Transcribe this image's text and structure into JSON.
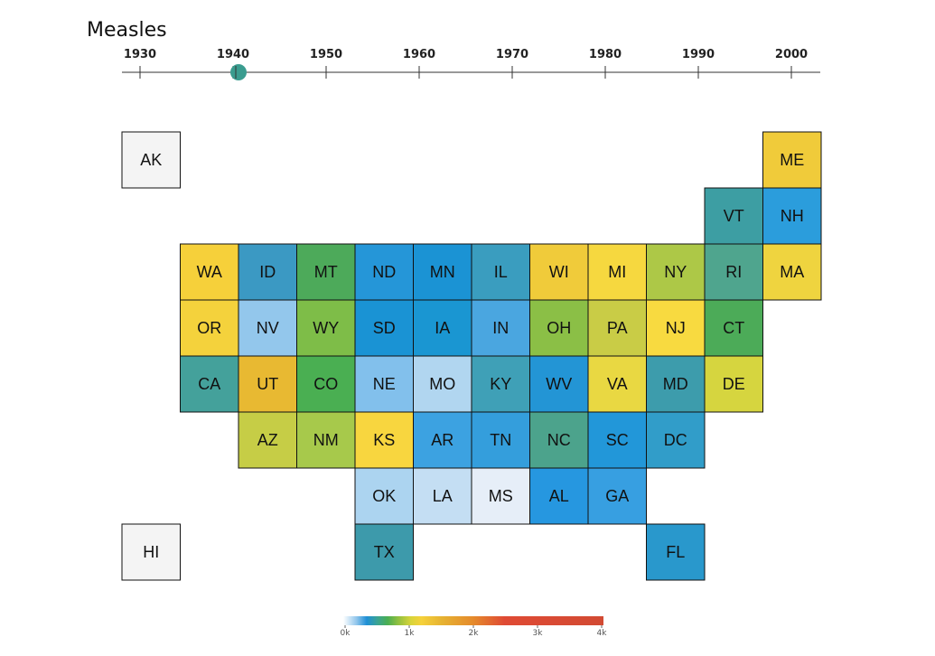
{
  "chart_data": {
    "type": "heatmap",
    "title": "Measles",
    "timeline": {
      "ticks": [
        "1930",
        "1940",
        "1950",
        "1960",
        "1970",
        "1980",
        "1990",
        "2000"
      ],
      "selected_year": 1940,
      "range": [
        1930,
        2003
      ]
    },
    "colorscale": {
      "stops": [
        [
          0,
          "#ffffff"
        ],
        [
          0.05,
          "#93c7ec"
        ],
        [
          0.09,
          "#1f8fd6"
        ],
        [
          0.13,
          "#3aa395"
        ],
        [
          0.17,
          "#4aae52"
        ],
        [
          0.21,
          "#8fbf40"
        ],
        [
          0.26,
          "#d8d43a"
        ],
        [
          0.3,
          "#f5d13a"
        ],
        [
          0.38,
          "#e6b232"
        ],
        [
          0.5,
          "#e58a2c"
        ],
        [
          0.62,
          "#df4a34"
        ],
        [
          1.0,
          "#d24a33"
        ]
      ],
      "range": [
        0,
        4000
      ],
      "tick_labels": [
        "0k",
        "1k",
        "2k",
        "3k",
        "4k"
      ]
    },
    "tiles": [
      {
        "state": "AK",
        "row": 0,
        "col": 0,
        "color": "#f4f4f4"
      },
      {
        "state": "ME",
        "row": 0,
        "col": 11,
        "color": "#f0cb3a"
      },
      {
        "state": "VT",
        "row": 1,
        "col": 10,
        "color": "#3d9ea3"
      },
      {
        "state": "NH",
        "row": 1,
        "col": 11,
        "color": "#2b9ddc"
      },
      {
        "state": "WA",
        "row": 2,
        "col": 1,
        "color": "#f6d03a"
      },
      {
        "state": "ID",
        "row": 2,
        "col": 2,
        "color": "#3b99c3"
      },
      {
        "state": "MT",
        "row": 2,
        "col": 3,
        "color": "#4daa5a"
      },
      {
        "state": "ND",
        "row": 2,
        "col": 4,
        "color": "#2596d8"
      },
      {
        "state": "MN",
        "row": 2,
        "col": 5,
        "color": "#1b93d4"
      },
      {
        "state": "IL",
        "row": 2,
        "col": 6,
        "color": "#3a9dbf"
      },
      {
        "state": "WI",
        "row": 2,
        "col": 7,
        "color": "#f0cb3a"
      },
      {
        "state": "MI",
        "row": 2,
        "col": 8,
        "color": "#f6d83f"
      },
      {
        "state": "NY",
        "row": 2,
        "col": 9,
        "color": "#adc847"
      },
      {
        "state": "RI",
        "row": 2,
        "col": 10,
        "color": "#4fa58e"
      },
      {
        "state": "MA",
        "row": 2,
        "col": 11,
        "color": "#efd43f"
      },
      {
        "state": "OR",
        "row": 3,
        "col": 1,
        "color": "#f4d23c"
      },
      {
        "state": "NV",
        "row": 3,
        "col": 2,
        "color": "#93c7ec"
      },
      {
        "state": "WY",
        "row": 3,
        "col": 3,
        "color": "#7ebd48"
      },
      {
        "state": "SD",
        "row": 3,
        "col": 4,
        "color": "#1a93d4"
      },
      {
        "state": "IA",
        "row": 3,
        "col": 5,
        "color": "#1a96d2"
      },
      {
        "state": "IN",
        "row": 3,
        "col": 6,
        "color": "#4aa6e0"
      },
      {
        "state": "OH",
        "row": 3,
        "col": 7,
        "color": "#8bbf46"
      },
      {
        "state": "PA",
        "row": 3,
        "col": 8,
        "color": "#c9cc46"
      },
      {
        "state": "NJ",
        "row": 3,
        "col": 9,
        "color": "#f8da40"
      },
      {
        "state": "CT",
        "row": 3,
        "col": 10,
        "color": "#4cab58"
      },
      {
        "state": "CA",
        "row": 4,
        "col": 1,
        "color": "#44a19b"
      },
      {
        "state": "UT",
        "row": 4,
        "col": 2,
        "color": "#e8b932"
      },
      {
        "state": "CO",
        "row": 4,
        "col": 3,
        "color": "#4aaf52"
      },
      {
        "state": "NE",
        "row": 4,
        "col": 4,
        "color": "#82c0ec"
      },
      {
        "state": "MO",
        "row": 4,
        "col": 5,
        "color": "#b1d6f0"
      },
      {
        "state": "KY",
        "row": 4,
        "col": 6,
        "color": "#3fa0b7"
      },
      {
        "state": "WV",
        "row": 4,
        "col": 7,
        "color": "#2395d5"
      },
      {
        "state": "VA",
        "row": 4,
        "col": 8,
        "color": "#e9d842"
      },
      {
        "state": "MD",
        "row": 4,
        "col": 9,
        "color": "#3d9cac"
      },
      {
        "state": "DE",
        "row": 4,
        "col": 10,
        "color": "#d6d53f"
      },
      {
        "state": "AZ",
        "row": 5,
        "col": 2,
        "color": "#c6cd46"
      },
      {
        "state": "NM",
        "row": 5,
        "col": 3,
        "color": "#a7c94b"
      },
      {
        "state": "KS",
        "row": 5,
        "col": 4,
        "color": "#f8d63f"
      },
      {
        "state": "AR",
        "row": 5,
        "col": 5,
        "color": "#3ca2e1"
      },
      {
        "state": "TN",
        "row": 5,
        "col": 6,
        "color": "#349edc"
      },
      {
        "state": "NC",
        "row": 5,
        "col": 7,
        "color": "#4ca38c"
      },
      {
        "state": "SC",
        "row": 5,
        "col": 8,
        "color": "#2297d9"
      },
      {
        "state": "DC",
        "row": 5,
        "col": 9,
        "color": "#319dc9"
      },
      {
        "state": "OK",
        "row": 6,
        "col": 4,
        "color": "#acd4f0"
      },
      {
        "state": "LA",
        "row": 6,
        "col": 5,
        "color": "#c4def3"
      },
      {
        "state": "MS",
        "row": 6,
        "col": 6,
        "color": "#e6eef8"
      },
      {
        "state": "AL",
        "row": 6,
        "col": 7,
        "color": "#2697e0"
      },
      {
        "state": "GA",
        "row": 6,
        "col": 8,
        "color": "#379fe1"
      },
      {
        "state": "HI",
        "row": 7,
        "col": 0,
        "color": "#f4f4f4"
      },
      {
        "state": "TX",
        "row": 7,
        "col": 4,
        "color": "#3d9aab"
      },
      {
        "state": "FL",
        "row": 7,
        "col": 9,
        "color": "#2998cc"
      }
    ]
  }
}
